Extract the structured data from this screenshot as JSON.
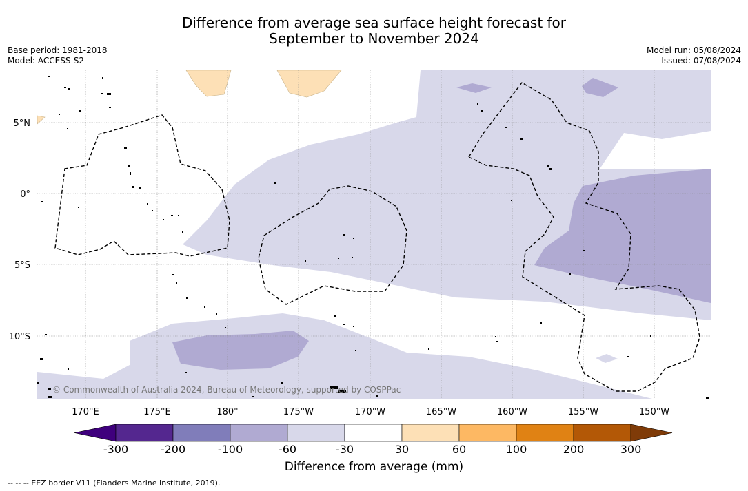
{
  "title_line1": "Difference from average sea surface height forecast for",
  "title_line2": "September to November 2024",
  "base_period": "Base period: 1981-2018",
  "model": "Model: ACCESS-S2",
  "model_run": "Model run: 05/08/2024",
  "issued": "Issued: 07/08/2024",
  "lat_labels": [
    "5°N",
    "0°",
    "5°S",
    "10°S"
  ],
  "lon_labels": [
    "170°E",
    "175°E",
    "180°",
    "175°W",
    "170°W",
    "165°W",
    "160°W",
    "155°W",
    "150°W"
  ],
  "copyright": "© Commonwealth of Australia 2024, Bureau of Meteorology, supported by COSPPac",
  "colorbar": {
    "title": "Difference from average (mm)",
    "ticks": [
      "-300",
      "-200",
      "-100",
      "-60",
      "-30",
      "30",
      "60",
      "100",
      "200",
      "300"
    ],
    "colors": [
      "#3f007d",
      "#54278f",
      "#807dba",
      "#b0aad2",
      "#d8d8ea",
      "#ffffff",
      "#fde0b6",
      "#fdb863",
      "#e08214",
      "#b35806",
      "#7f3b08"
    ]
  },
  "footer": "--  --  -- EEZ border V11 (Flanders Marine Institute, 2019)."
}
